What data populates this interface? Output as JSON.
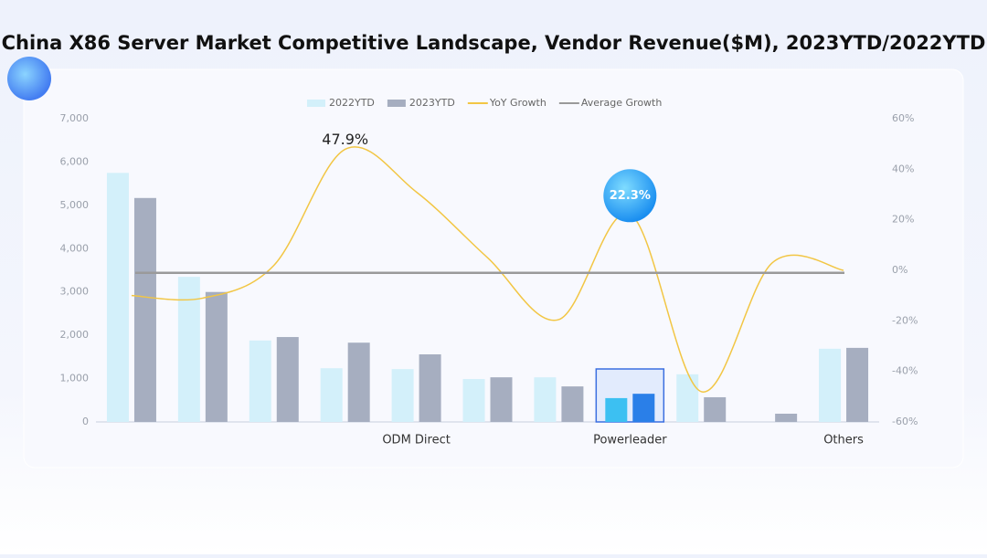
{
  "chart_data": {
    "type": "bar_line",
    "title": "China X86 Server Market Competitive Landscape, Vendor Revenue($M), 2023YTD/2022YTD",
    "categories": [
      null,
      null,
      null,
      null,
      "ODM Direct",
      null,
      null,
      "Powerleader",
      null,
      null,
      "Others"
    ],
    "series": [
      {
        "name": "2022YTD",
        "type": "bar",
        "color": "#d3f0fa",
        "highlight_color": "#3cc0f2",
        "values": [
          5750,
          3350,
          1880,
          1240,
          1220,
          990,
          1030,
          550,
          1100,
          0,
          1690
        ]
      },
      {
        "name": "2023YTD",
        "type": "bar",
        "color": "#a6aec0",
        "highlight_color": "#2a7fe8",
        "values": [
          5170,
          3000,
          1960,
          1830,
          1560,
          1030,
          820,
          650,
          570,
          190,
          1710
        ]
      },
      {
        "name": "YoY Growth",
        "type": "line",
        "axis": "y2",
        "color": "#f2c644",
        "values": [
          -10,
          -11,
          2,
          47.9,
          31,
          5,
          -19.5,
          22.3,
          -48,
          3,
          0
        ],
        "value_labels": [
          null,
          null,
          null,
          "47.9%",
          null,
          null,
          null,
          "22.3%",
          null,
          null,
          null
        ]
      },
      {
        "name": "Average Growth",
        "type": "hline",
        "axis": "y2",
        "color": "#9a9a9a",
        "value": -1
      }
    ],
    "highlight": 7,
    "ylim": [
      0,
      7000
    ],
    "yticks": [
      0,
      {
        "value": 1000,
        "label": "1,000"
      },
      {
        "value": 2000,
        "label": "2,000"
      },
      {
        "value": 3000,
        "label": "3,000"
      },
      {
        "value": 4000,
        "label": "4,000"
      },
      {
        "value": 5000,
        "label": "5,000"
      },
      {
        "value": 6000,
        "label": "6,000"
      },
      {
        "value": 7000,
        "label": "7,000"
      }
    ],
    "y2lim": [
      -60,
      60
    ],
    "y2ticks": [
      {
        "value": -60,
        "label": "-60%"
      },
      {
        "value": -40,
        "label": "-40%"
      },
      {
        "value": -20,
        "label": "-20%"
      },
      {
        "value": 0,
        "label": "0%"
      },
      {
        "value": 20,
        "label": "20%"
      },
      {
        "value": 40,
        "label": "40%"
      },
      {
        "value": 60,
        "label": "60%"
      }
    ]
  }
}
